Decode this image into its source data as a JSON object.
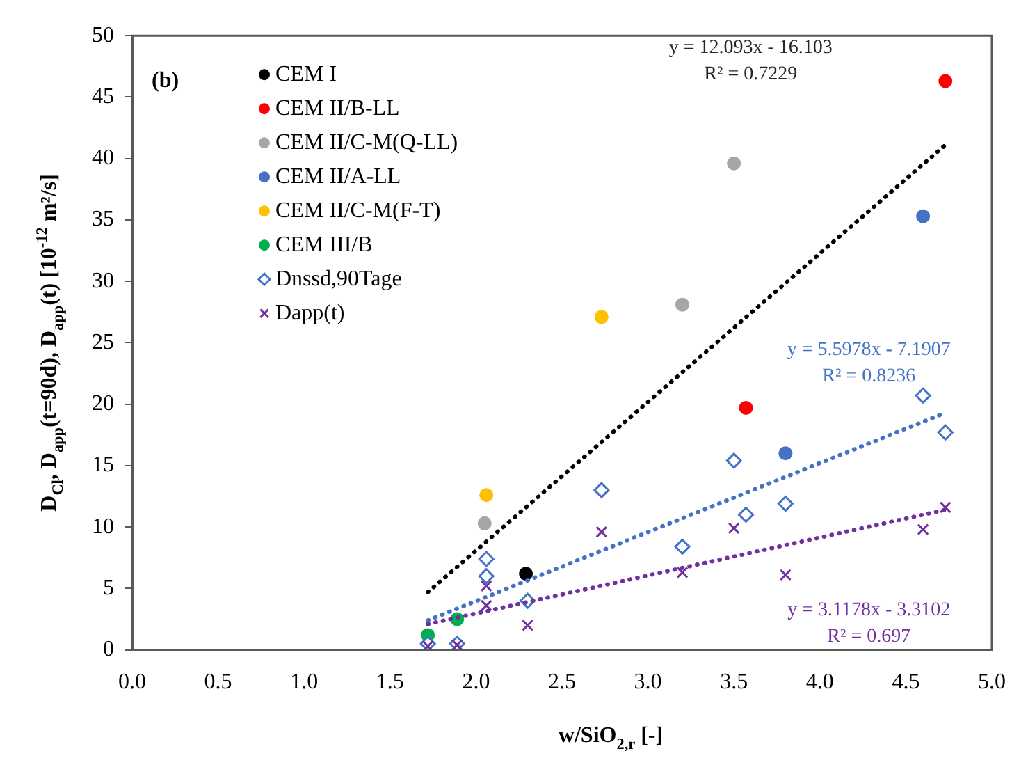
{
  "chart_data": {
    "type": "scatter",
    "xlabel": "w/SiO$_{2,r}$ [-]",
    "ylabel": "D$_{Cl}$, D$_{app}$(t=90d), D$_{app}$(t) [10$^{-12}$ m²/s]",
    "xlim": [
      0,
      5
    ],
    "xticks": [
      {
        "value": 0,
        "label": "0.0"
      },
      {
        "value": 0.5,
        "label": "0.5"
      },
      {
        "value": 1,
        "label": "1.0"
      },
      {
        "value": 1.5,
        "label": "1.5"
      },
      {
        "value": 2,
        "label": "2.0"
      },
      {
        "value": 2.5,
        "label": "2.5"
      },
      {
        "value": 3,
        "label": "3.0"
      },
      {
        "value": 3.5,
        "label": "3.5"
      },
      {
        "value": 4,
        "label": "4.0"
      },
      {
        "value": 4.5,
        "label": "4.5"
      },
      {
        "value": 5,
        "label": "5.0"
      }
    ],
    "ylim": [
      0,
      50
    ],
    "yticks": [
      0,
      5,
      10,
      15,
      20,
      25,
      30,
      35,
      40,
      45,
      50
    ],
    "grid": false,
    "legend": "top left",
    "series": [
      {
        "name": "CEM I",
        "color": "#000000",
        "marker": "circle",
        "x": [
          2.29
        ],
        "values": [
          6.2
        ]
      },
      {
        "name": "CEM II/B-LL",
        "color": "#ff0000",
        "marker": "circle",
        "x": [
          3.57,
          4.73
        ],
        "values": [
          19.7,
          46.3
        ]
      },
      {
        "name": "CEM II/C-M(Q-LL)",
        "color": "#a6a6a6",
        "marker": "circle",
        "x": [
          2.05,
          3.2,
          3.5
        ],
        "values": [
          10.3,
          28.1,
          39.6
        ]
      },
      {
        "name": "CEM II/A-LL",
        "color": "#4472c4",
        "marker": "circle",
        "x": [
          3.8,
          4.6
        ],
        "values": [
          16.0,
          35.3
        ]
      },
      {
        "name": "CEM II/C-M(F-T)",
        "color": "#ffc000",
        "marker": "circle",
        "x": [
          2.06,
          2.73
        ],
        "values": [
          12.6,
          27.1
        ]
      },
      {
        "name": "CEM III/B",
        "color": "#00b050",
        "marker": "circle",
        "x": [
          1.72,
          1.89
        ],
        "values": [
          1.2,
          2.5
        ]
      },
      {
        "name": "Dnssd,90Tage",
        "color": "#4472c4",
        "marker": "diamond",
        "x": [
          1.72,
          1.89,
          2.06,
          2.06,
          2.3,
          2.73,
          3.2,
          3.5,
          3.57,
          3.8,
          4.6,
          4.73
        ],
        "values": [
          0.5,
          0.5,
          7.4,
          6.0,
          4.0,
          13.0,
          8.4,
          15.4,
          11.0,
          11.9,
          20.7,
          17.7
        ]
      },
      {
        "name": "Dapp(t)",
        "color": "#7030a0",
        "marker": "cross",
        "x": [
          1.72,
          1.89,
          2.06,
          2.06,
          2.3,
          2.73,
          3.2,
          3.5,
          3.8,
          4.6,
          4.73
        ],
        "values": [
          0.3,
          0.4,
          5.2,
          3.6,
          2.0,
          9.6,
          6.3,
          9.9,
          6.1,
          9.8,
          11.6
        ]
      },
      {
        "type": "line",
        "color": "#000000",
        "line_style": "dotted",
        "marker": "none",
        "x": [
          1.72,
          4.73
        ],
        "values": [
          4.7,
          41.1
        ]
      },
      {
        "type": "line",
        "color": "#4472c4",
        "line_style": "dotted",
        "marker": "none",
        "x": [
          1.72,
          4.73
        ],
        "values": [
          2.4,
          19.3
        ]
      },
      {
        "type": "line",
        "color": "#7030a0",
        "line_style": "dotted",
        "marker": "none",
        "x": [
          1.72,
          4.73
        ],
        "values": [
          2.1,
          11.4
        ]
      }
    ],
    "annotations": [
      "(b)",
      "y = 12.093x - 16.103",
      "R² = 0.7229",
      "y = 5.5978x - 7.1907",
      "R² = 0.8236",
      "y = 3.1178x - 3.3102",
      "R² = 0.697"
    ]
  }
}
